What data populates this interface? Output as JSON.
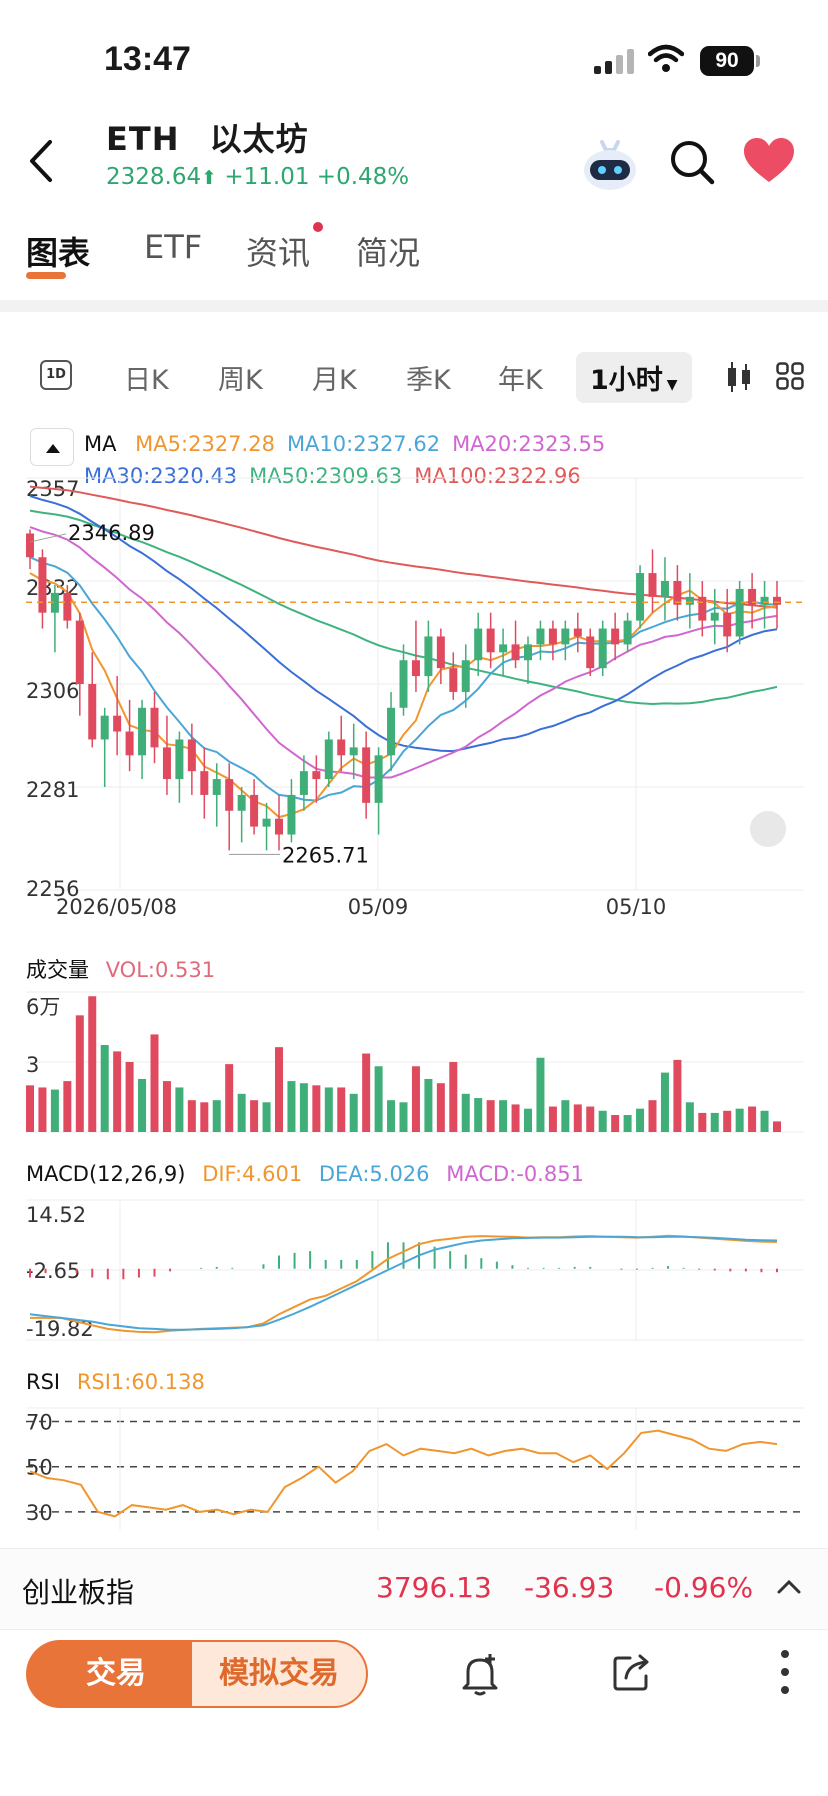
{
  "status": {
    "time": "13:47",
    "battery": "90"
  },
  "header": {
    "symbol": "ETH",
    "name": "以太坊",
    "price": "2328.64",
    "change": "+11.01",
    "change_pct": "+0.48%",
    "up_color": "#2ea66f",
    "accent": "#e8743a",
    "heart_color": "#ec4c64"
  },
  "tabs": [
    "图表",
    "ETF",
    "资讯",
    "简况"
  ],
  "periods": [
    "1D",
    "日K",
    "周K",
    "月K",
    "季K",
    "年K",
    "1小时"
  ],
  "ma_legend": {
    "label": "MA",
    "row1": [
      {
        "text": "MA5:2327.28",
        "color": "#f0962e"
      },
      {
        "text": "MA10:2327.62",
        "color": "#4aa6d6"
      },
      {
        "text": "MA20:2323.55",
        "color": "#d067d0"
      }
    ],
    "row2": [
      {
        "text": "MA30:2320.43",
        "color": "#3a6fd8"
      },
      {
        "text": "MA50:2309.63",
        "color": "#3fb37f"
      },
      {
        "text": "MA100:2322.96",
        "color": "#e05a5a"
      }
    ]
  },
  "price_chart": {
    "y_ticks": [
      "2357",
      "2332",
      "2306",
      "2281",
      "2256"
    ],
    "x_ticks": [
      "2026/05/08",
      "05/09",
      "05/10"
    ],
    "high_label": "2346.89",
    "low_label": "2265.71",
    "current_price": 2328.64
  },
  "volume": {
    "title": "成交量",
    "value": "VOL:0.531",
    "y_ticks": [
      "6万",
      "3"
    ]
  },
  "macd": {
    "title": "MACD(12,26,9)",
    "dif": "DIF:4.601",
    "dea": "DEA:5.026",
    "macd": "MACD:-0.851",
    "y_ticks": [
      "14.52",
      "-2.65",
      "-19.82"
    ]
  },
  "rsi": {
    "title": "RSI",
    "value": "RSI1:60.138",
    "y_ticks": [
      "70",
      "50",
      "30"
    ]
  },
  "ticker": {
    "name": "创业板指",
    "price": "3796.13",
    "change": "-36.93",
    "pct": "-0.96%",
    "down_color": "#e0334e"
  },
  "toolbar": {
    "trade": "交易",
    "sim_trade": "模拟交易"
  },
  "chart_data": {
    "type": "candlestick",
    "interval": "1小时",
    "y_range": [
      2256,
      2360
    ],
    "candles": [
      [
        2346,
        2347,
        2337,
        2340
      ],
      [
        2340,
        2342,
        2322,
        2326
      ],
      [
        2326,
        2333,
        2316,
        2331
      ],
      [
        2331,
        2333,
        2322,
        2324
      ],
      [
        2324,
        2326,
        2300,
        2308
      ],
      [
        2308,
        2316,
        2292,
        2294
      ],
      [
        2294,
        2302,
        2282,
        2300
      ],
      [
        2300,
        2310,
        2290,
        2296
      ],
      [
        2296,
        2304,
        2286,
        2290
      ],
      [
        2290,
        2304,
        2284,
        2302
      ],
      [
        2302,
        2306,
        2288,
        2292
      ],
      [
        2292,
        2300,
        2280,
        2284
      ],
      [
        2284,
        2296,
        2278,
        2294
      ],
      [
        2294,
        2298,
        2280,
        2286
      ],
      [
        2286,
        2292,
        2274,
        2280
      ],
      [
        2280,
        2288,
        2272,
        2284
      ],
      [
        2284,
        2288,
        2266,
        2276
      ],
      [
        2276,
        2282,
        2268,
        2280
      ],
      [
        2280,
        2284,
        2270,
        2272
      ],
      [
        2272,
        2278,
        2266,
        2274
      ],
      [
        2274,
        2280,
        2266,
        2270
      ],
      [
        2270,
        2284,
        2268,
        2280
      ],
      [
        2280,
        2290,
        2276,
        2286
      ],
      [
        2286,
        2290,
        2278,
        2284
      ],
      [
        2284,
        2296,
        2282,
        2294
      ],
      [
        2294,
        2300,
        2286,
        2290
      ],
      [
        2290,
        2298,
        2284,
        2292
      ],
      [
        2292,
        2296,
        2274,
        2278
      ],
      [
        2278,
        2292,
        2270,
        2290
      ],
      [
        2290,
        2306,
        2286,
        2302
      ],
      [
        2302,
        2318,
        2300,
        2314
      ],
      [
        2314,
        2324,
        2306,
        2310
      ],
      [
        2310,
        2324,
        2306,
        2320
      ],
      [
        2320,
        2322,
        2308,
        2312
      ],
      [
        2312,
        2316,
        2304,
        2306
      ],
      [
        2306,
        2318,
        2302,
        2314
      ],
      [
        2314,
        2326,
        2310,
        2322
      ],
      [
        2322,
        2326,
        2312,
        2316
      ],
      [
        2316,
        2322,
        2310,
        2318
      ],
      [
        2318,
        2324,
        2312,
        2314
      ],
      [
        2314,
        2320,
        2308,
        2318
      ],
      [
        2318,
        2324,
        2314,
        2322
      ],
      [
        2322,
        2324,
        2314,
        2318
      ],
      [
        2318,
        2324,
        2314,
        2322
      ],
      [
        2322,
        2326,
        2316,
        2320
      ],
      [
        2320,
        2322,
        2310,
        2312
      ],
      [
        2312,
        2324,
        2310,
        2322
      ],
      [
        2322,
        2326,
        2314,
        2318
      ],
      [
        2318,
        2326,
        2316,
        2324
      ],
      [
        2324,
        2338,
        2322,
        2336
      ],
      [
        2336,
        2342,
        2326,
        2330
      ],
      [
        2330,
        2340,
        2324,
        2334
      ],
      [
        2334,
        2338,
        2324,
        2328
      ],
      [
        2328,
        2336,
        2322,
        2330
      ],
      [
        2330,
        2334,
        2320,
        2324
      ],
      [
        2324,
        2332,
        2318,
        2326
      ],
      [
        2326,
        2332,
        2316,
        2320
      ],
      [
        2320,
        2334,
        2318,
        2332
      ],
      [
        2332,
        2336,
        2322,
        2328
      ],
      [
        2328,
        2334,
        2322,
        2330
      ],
      [
        2330,
        2334,
        2322,
        2328
      ]
    ],
    "volume": [
      2.2,
      2.1,
      2.0,
      2.4,
      5.5,
      6.4,
      4.1,
      3.8,
      3.3,
      2.5,
      4.6,
      2.4,
      2.1,
      1.5,
      1.4,
      1.5,
      3.2,
      1.8,
      1.5,
      1.4,
      4.0,
      2.4,
      2.3,
      2.2,
      2.1,
      2.1,
      1.8,
      3.7,
      3.1,
      1.5,
      1.4,
      3.1,
      2.5,
      2.3,
      3.3,
      1.8,
      1.6,
      1.5,
      1.5,
      1.3,
      1.1,
      3.5,
      1.2,
      1.5,
      1.3,
      1.2,
      1.0,
      0.8,
      0.8,
      1.1,
      1.5,
      2.8,
      3.4,
      1.4,
      0.9,
      0.9,
      1.0,
      1.1,
      1.2,
      1.0,
      0.5
    ],
    "macd_dif": [
      -16,
      -16,
      -16,
      -17,
      -18,
      -19,
      -19.5,
      -19.8,
      -19.9,
      -19.5,
      -19.2,
      -19,
      -18.8,
      -18.7,
      -18.5,
      -17.5,
      -15,
      -13,
      -11,
      -10,
      -8,
      -6,
      -3,
      0,
      2,
      4,
      5,
      5.5,
      6,
      6.2,
      6.1,
      6,
      5.8,
      5.9,
      5.9,
      6.1,
      6.2,
      6.0,
      5.9,
      5.8,
      6.0,
      6.3,
      6.1,
      5.8,
      5.5,
      5.2,
      4.9,
      4.7,
      4.6
    ],
    "macd_dea": [
      -15,
      -15.5,
      -16,
      -16.5,
      -17,
      -17.8,
      -18.3,
      -18.8,
      -19,
      -19.2,
      -19.2,
      -19.1,
      -19,
      -18.8,
      -18.5,
      -18,
      -16.5,
      -14.8,
      -13,
      -11,
      -9,
      -7,
      -5,
      -3,
      -1,
      1,
      2.5,
      3.5,
      4.4,
      5,
      5.3,
      5.6,
      5.7,
      5.8,
      5.8,
      5.9,
      6,
      6.0,
      6.0,
      5.9,
      5.9,
      6.0,
      6.0,
      5.9,
      5.7,
      5.5,
      5.2,
      5.1,
      5.0
    ],
    "rsi": [
      48,
      45,
      44,
      42,
      30,
      28,
      33,
      32,
      31,
      33,
      30,
      31,
      29,
      31,
      30,
      41,
      45,
      50,
      43,
      48,
      57,
      60,
      55,
      58,
      57,
      56,
      58,
      55,
      57,
      58,
      56,
      56,
      52,
      55,
      49,
      56,
      65,
      66,
      64,
      62,
      58,
      57,
      60,
      61,
      60
    ]
  }
}
